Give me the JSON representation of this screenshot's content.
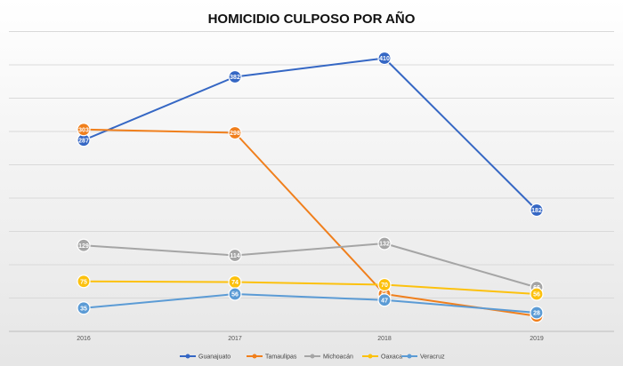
{
  "chart_data": {
    "type": "line",
    "title": "HOMICIDIO CULPOSO POR AÑO",
    "categories": [
      "2016",
      "2017",
      "2018",
      "2019"
    ],
    "ylim": [
      0,
      450
    ],
    "grid": true,
    "legend_position": "bottom",
    "series": [
      {
        "name": "Guanajuato",
        "color": "#3567c4",
        "values": [
          287,
          382,
          410,
          182
        ]
      },
      {
        "name": "Tamaulipas",
        "color": "#f07f1c",
        "values": [
          303,
          298,
          56,
          23
        ]
      },
      {
        "name": "Michoacán",
        "color": "#a5a5a5",
        "values": [
          129,
          114,
          132,
          66
        ]
      },
      {
        "name": "Oaxaca",
        "color": "#fcc10e",
        "values": [
          75,
          74,
          70,
          56
        ]
      },
      {
        "name": "Veracruz",
        "color": "#5b9bd5",
        "values": [
          35,
          56,
          47,
          28
        ]
      }
    ]
  }
}
